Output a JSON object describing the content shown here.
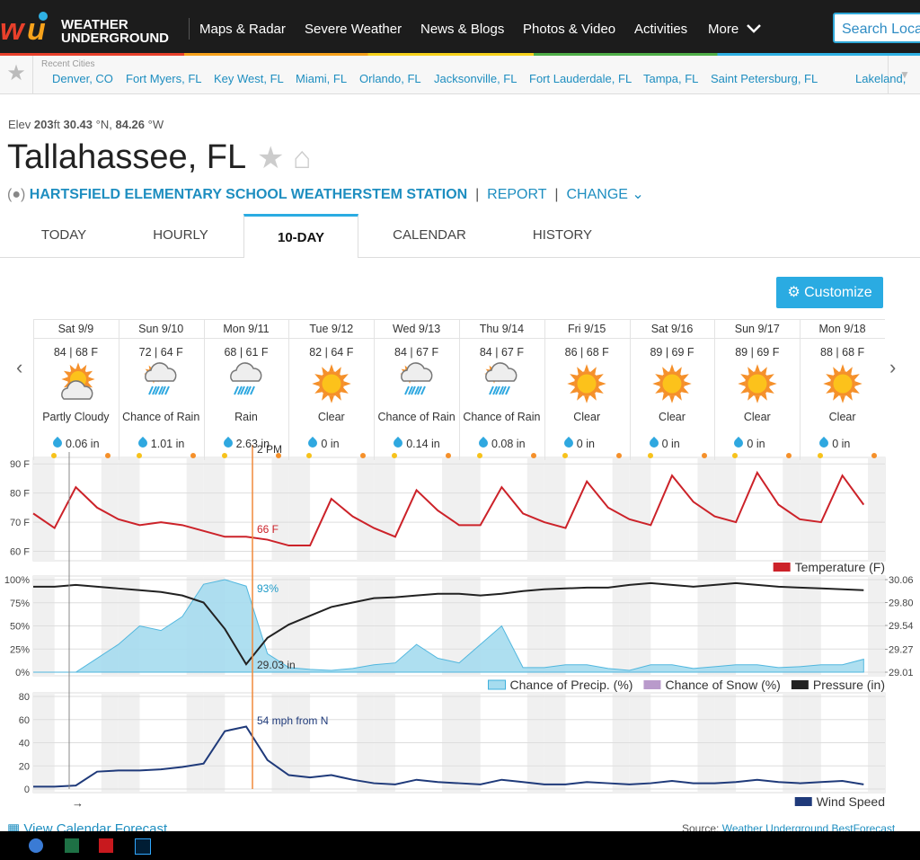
{
  "header": {
    "logo": [
      "WEATHER",
      "UNDERGROUND"
    ],
    "nav": [
      "Maps & Radar",
      "Severe Weather",
      "News & Blogs",
      "Photos & Video",
      "Activities",
      "More"
    ],
    "search": "Search Loca"
  },
  "recent": {
    "label": "Recent Cities",
    "cities": [
      "Denver, CO",
      "Fort Myers, FL",
      "Key West, FL",
      "Miami, FL",
      "Orlando, FL",
      "Jacksonville, FL",
      "Fort Lauderdale, FL",
      "Tampa, FL",
      "Saint Petersburg, FL",
      "Lakeland,"
    ]
  },
  "location": {
    "elev_label": "Elev",
    "elev": "203",
    "elev_unit": "ft",
    "lat": "30.43",
    "lat_unit": "°N,",
    "lon": "84.26",
    "lon_unit": "°W",
    "city": "Tallahassee, FL",
    "station": "HARTSFIELD ELEMENTARY SCHOOL WEATHERSTEM STATION",
    "report": "REPORT",
    "change": "CHANGE"
  },
  "tabs": [
    "TODAY",
    "HOURLY",
    "10-DAY",
    "CALENDAR",
    "HISTORY"
  ],
  "active_tab": 2,
  "customize": "Customize",
  "forecast": [
    {
      "day": "Sat 9/9",
      "temps": "84 | 68 F",
      "condition": "Partly Cloudy",
      "precip": "0.06 in"
    },
    {
      "day": "Sun 9/10",
      "temps": "72 | 64 F",
      "condition": "Chance of Rain",
      "precip": "1.01 in"
    },
    {
      "day": "Mon 9/11",
      "temps": "68 | 61 F",
      "condition": "Rain",
      "precip": "2.63 in"
    },
    {
      "day": "Tue 9/12",
      "temps": "82 | 64 F",
      "condition": "Clear",
      "precip": "0 in"
    },
    {
      "day": "Wed 9/13",
      "temps": "84 | 67 F",
      "condition": "Chance of Rain",
      "precip": "0.14 in"
    },
    {
      "day": "Thu 9/14",
      "temps": "84 | 67 F",
      "condition": "Chance of Rain",
      "precip": "0.08 in"
    },
    {
      "day": "Fri 9/15",
      "temps": "86 | 68 F",
      "condition": "Clear",
      "precip": "0 in"
    },
    {
      "day": "Sat 9/16",
      "temps": "89 | 69 F",
      "condition": "Clear",
      "precip": "0 in"
    },
    {
      "day": "Sun 9/17",
      "temps": "89 | 69 F",
      "condition": "Clear",
      "precip": "0 in"
    },
    {
      "day": "Mon 9/18",
      "temps": "88 | 68 F",
      "condition": "Clear",
      "precip": "0 in"
    }
  ],
  "chart_data": [
    {
      "type": "line",
      "ylim": [
        58,
        91
      ],
      "yticks": [
        {
          "value": 60,
          "label": "60 F"
        },
        {
          "value": 70,
          "label": "70 F"
        },
        {
          "value": 80,
          "label": "80 F"
        },
        {
          "value": 90,
          "label": "90 F"
        }
      ],
      "series": [
        {
          "name": "Temperature (F)",
          "color": "#cc2229",
          "values": [
            73,
            68,
            82,
            75,
            71,
            69,
            70,
            69,
            67,
            65,
            65,
            64,
            62,
            62,
            78,
            72,
            68,
            65,
            81,
            74,
            69,
            69,
            82,
            73,
            70,
            68,
            84,
            75,
            71,
            69,
            86,
            77,
            72,
            70,
            87,
            76,
            71,
            70,
            86,
            76
          ]
        }
      ],
      "annotations": [
        "2 PM",
        "66 F"
      ]
    },
    {
      "type": "line",
      "ylim": [
        0,
        100
      ],
      "yticks": [
        {
          "value": 0,
          "label": "0%"
        },
        {
          "value": 25,
          "label": "25%"
        },
        {
          "value": 50,
          "label": "50%"
        },
        {
          "value": 75,
          "label": "75%"
        },
        {
          "value": 100,
          "label": "100%"
        }
      ],
      "y2lim": [
        29.01,
        30.06
      ],
      "y2ticks": [
        29.01,
        29.27,
        29.54,
        {
          "value": 29.8,
          "label": "29.80"
        },
        30.06
      ],
      "series": [
        {
          "name": "Chance of Precip. (%)",
          "color": "#a6dcef",
          "fill": true,
          "values": [
            0,
            0,
            0,
            15,
            30,
            50,
            45,
            60,
            95,
            100,
            93,
            20,
            5,
            3,
            2,
            4,
            8,
            10,
            30,
            15,
            10,
            30,
            50,
            5,
            5,
            8,
            8,
            4,
            2,
            8,
            8,
            4,
            6,
            8,
            8,
            5,
            6,
            8,
            8,
            14
          ]
        },
        {
          "name": "Chance of Snow (%)",
          "color": "#b99acb"
        },
        {
          "name": "Pressure (in)",
          "color": "#222222",
          "axis": "y2",
          "values": [
            29.98,
            29.98,
            30.0,
            29.98,
            29.96,
            29.94,
            29.92,
            29.88,
            29.8,
            29.5,
            29.1,
            29.4,
            29.55,
            29.65,
            29.75,
            29.8,
            29.85,
            29.86,
            29.88,
            29.9,
            29.9,
            29.88,
            29.9,
            29.93,
            29.95,
            29.96,
            29.97,
            29.97,
            30.0,
            30.02,
            30.0,
            29.98,
            30.0,
            30.02,
            30.0,
            29.98,
            29.97,
            29.96,
            29.95,
            29.94
          ]
        }
      ],
      "annotations": [
        "93%",
        "29.03 in"
      ]
    },
    {
      "type": "line",
      "ylim": [
        0,
        80
      ],
      "yticks": [
        0,
        20,
        40,
        60,
        80
      ],
      "series": [
        {
          "name": "Wind Speed",
          "color": "#1f3a7a",
          "values": [
            2,
            2,
            3,
            15,
            16,
            16,
            17,
            19,
            22,
            50,
            54,
            25,
            12,
            10,
            12,
            8,
            5,
            4,
            8,
            6,
            5,
            4,
            8,
            6,
            4,
            4,
            6,
            5,
            4,
            5,
            7,
            5,
            5,
            6,
            8,
            6,
            5,
            6,
            7,
            4
          ]
        }
      ],
      "annotations": [
        "54 mph from N"
      ]
    }
  ],
  "footer": {
    "link": "View Calendar Forecast",
    "source_label": "Source:",
    "source": "Weather Underground BestForecast"
  }
}
